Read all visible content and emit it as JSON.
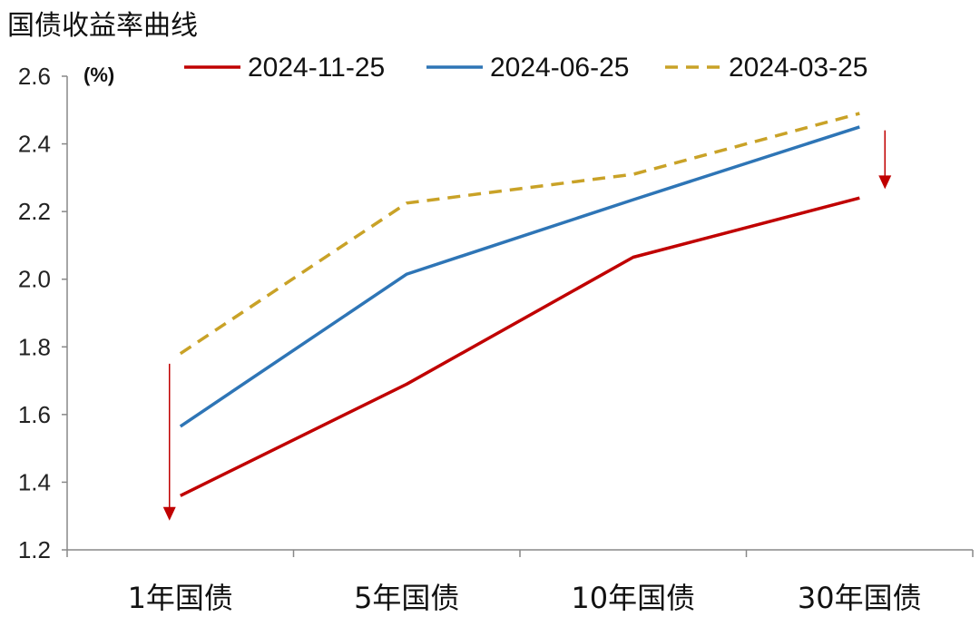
{
  "chart_data": {
    "type": "line",
    "title": "国债收益率曲线",
    "unit_label": "(%)",
    "categories": [
      "1年国债",
      "5年国债",
      "10年国债",
      "30年国债"
    ],
    "ylim": [
      1.2,
      2.6
    ],
    "yticks": [
      "1.2",
      "1.4",
      "1.6",
      "1.8",
      "2.0",
      "2.2",
      "2.4",
      "2.6"
    ],
    "grid": false,
    "legend_position": "top",
    "series": [
      {
        "name": "2024-11-25",
        "values": [
          1.36,
          1.69,
          2.065,
          2.24
        ],
        "color": "#c00000",
        "dash": false
      },
      {
        "name": "2024-06-25",
        "values": [
          1.565,
          2.015,
          2.235,
          2.45
        ],
        "color": "#2e75b6",
        "dash": false
      },
      {
        "name": "2024-03-25",
        "values": [
          1.78,
          2.225,
          2.31,
          2.49
        ],
        "color": "#c9a227",
        "dash": true
      }
    ],
    "annotations": [
      {
        "type": "down-arrow",
        "category": "1年国债",
        "from": 1.75,
        "to": 1.3,
        "color": "#c00000"
      },
      {
        "type": "down-arrow",
        "category": "30年国债",
        "from": 2.44,
        "to": 2.28,
        "color": "#c00000"
      }
    ]
  }
}
